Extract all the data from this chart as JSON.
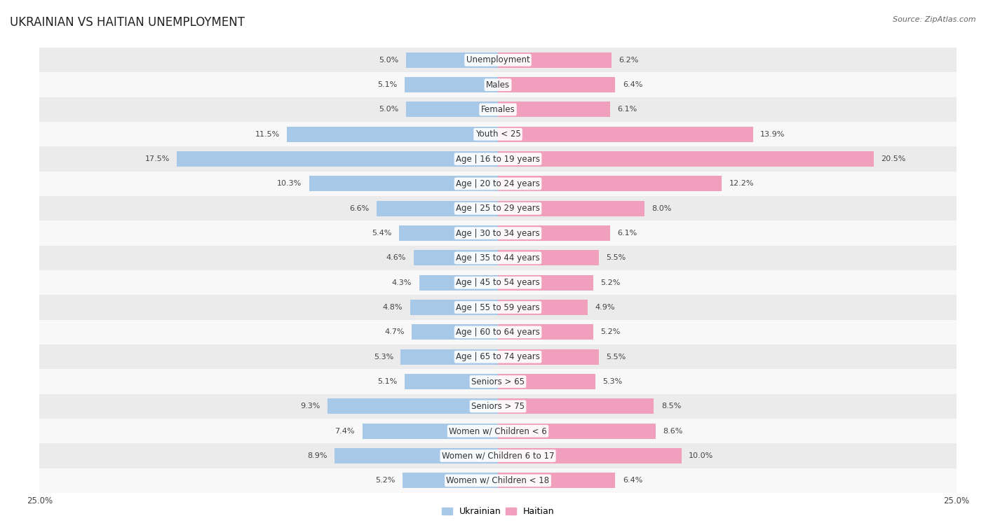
{
  "title": "UKRAINIAN VS HAITIAN UNEMPLOYMENT",
  "source": "Source: ZipAtlas.com",
  "categories": [
    "Unemployment",
    "Males",
    "Females",
    "Youth < 25",
    "Age | 16 to 19 years",
    "Age | 20 to 24 years",
    "Age | 25 to 29 years",
    "Age | 30 to 34 years",
    "Age | 35 to 44 years",
    "Age | 45 to 54 years",
    "Age | 55 to 59 years",
    "Age | 60 to 64 years",
    "Age | 65 to 74 years",
    "Seniors > 65",
    "Seniors > 75",
    "Women w/ Children < 6",
    "Women w/ Children 6 to 17",
    "Women w/ Children < 18"
  ],
  "ukrainian": [
    5.0,
    5.1,
    5.0,
    11.5,
    17.5,
    10.3,
    6.6,
    5.4,
    4.6,
    4.3,
    4.8,
    4.7,
    5.3,
    5.1,
    9.3,
    7.4,
    8.9,
    5.2
  ],
  "haitian": [
    6.2,
    6.4,
    6.1,
    13.9,
    20.5,
    12.2,
    8.0,
    6.1,
    5.5,
    5.2,
    4.9,
    5.2,
    5.5,
    5.3,
    8.5,
    8.6,
    10.0,
    6.4
  ],
  "ukrainian_color": "#a8c8e8",
  "haitian_color": "#f0a0bc",
  "row_bg_odd": "#ebebeb",
  "row_bg_even": "#f8f8f8",
  "bar_height": 0.62,
  "xlim": 25.0,
  "title_fontsize": 12,
  "label_fontsize": 8.5,
  "value_fontsize": 8,
  "source_fontsize": 8
}
